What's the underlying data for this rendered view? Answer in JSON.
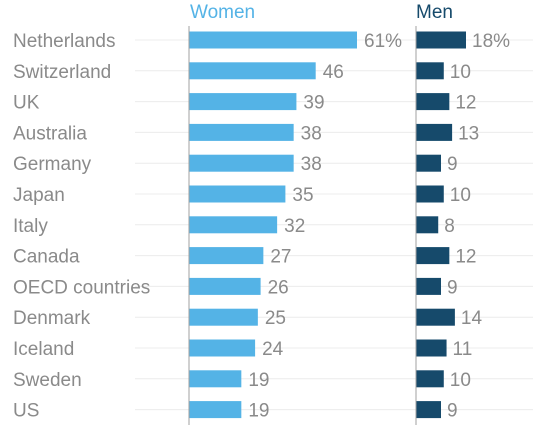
{
  "chart_data": {
    "type": "bar",
    "categories": [
      "Netherlands",
      "Switzerland",
      "UK",
      "Australia",
      "Germany",
      "Japan",
      "Italy",
      "Canada",
      "OECD countries",
      "Denmark",
      "Iceland",
      "Sweden",
      "US"
    ],
    "series": [
      {
        "name": "Women",
        "values": [
          61,
          46,
          39,
          38,
          38,
          35,
          32,
          27,
          26,
          25,
          24,
          19,
          19
        ],
        "labels": [
          "61%",
          "46",
          "39",
          "38",
          "38",
          "35",
          "32",
          "27",
          "26",
          "25",
          "24",
          "19",
          "19"
        ],
        "color": "#54b3e6"
      },
      {
        "name": "Men",
        "values": [
          18,
          10,
          12,
          13,
          9,
          10,
          8,
          12,
          9,
          14,
          11,
          10,
          9
        ],
        "labels": [
          "18%",
          "10",
          "12",
          "13",
          "9",
          "10",
          "8",
          "12",
          "9",
          "14",
          "11",
          "10",
          "9"
        ],
        "color": "#164a6b"
      }
    ],
    "title": "",
    "xlabel": "",
    "ylabel": "",
    "xlim": [
      0,
      61
    ],
    "grid": true
  },
  "colors": {
    "women": "#54b3e6",
    "men": "#164a6b",
    "text": "#8a8a8a",
    "grid": "#ececec",
    "axis": "#a0a0a0"
  }
}
